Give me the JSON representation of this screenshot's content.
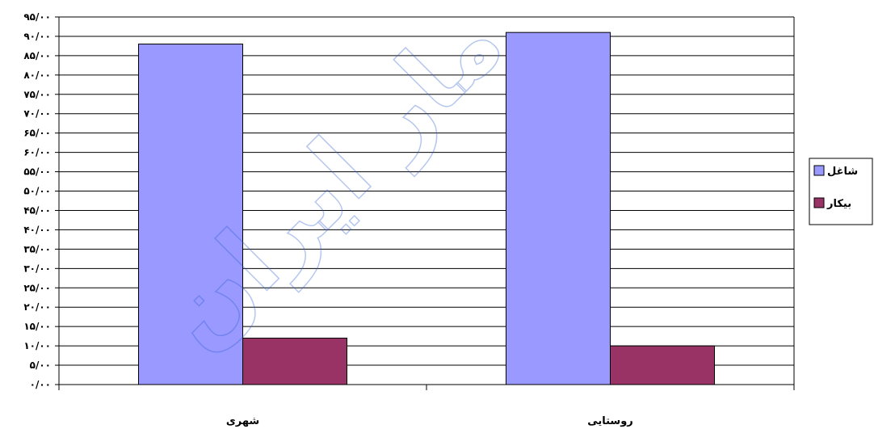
{
  "chart_data": {
    "type": "bar",
    "categories": [
      "شهری",
      "روستایی"
    ],
    "series": [
      {
        "name": "شاغل",
        "values": [
          88.0,
          91.0
        ],
        "color": "#9999ff"
      },
      {
        "name": "بیکار",
        "values": [
          12.0,
          10.0
        ],
        "color": "#993366"
      }
    ],
    "ylim": [
      0,
      95
    ],
    "ytick_step": 5,
    "ytick_labels": [
      "۰/۰۰",
      "۵/۰۰",
      "۱۰/۰۰",
      "۱۵/۰۰",
      "۲۰/۰۰",
      "۲۵/۰۰",
      "۳۰/۰۰",
      "۳۵/۰۰",
      "۴۰/۰۰",
      "۴۵/۰۰",
      "۵۰/۰۰",
      "۵۵/۰۰",
      "۶۰/۰۰",
      "۶۵/۰۰",
      "۷۰/۰۰",
      "۷۵/۰۰",
      "۸۰/۰۰",
      "۸۵/۰۰",
      "۹۰/۰۰",
      "۹۵/۰۰"
    ],
    "grid": true,
    "legend_position": "right",
    "title": "",
    "xlabel": "",
    "ylabel": ""
  },
  "watermark_text": "مار ایران"
}
